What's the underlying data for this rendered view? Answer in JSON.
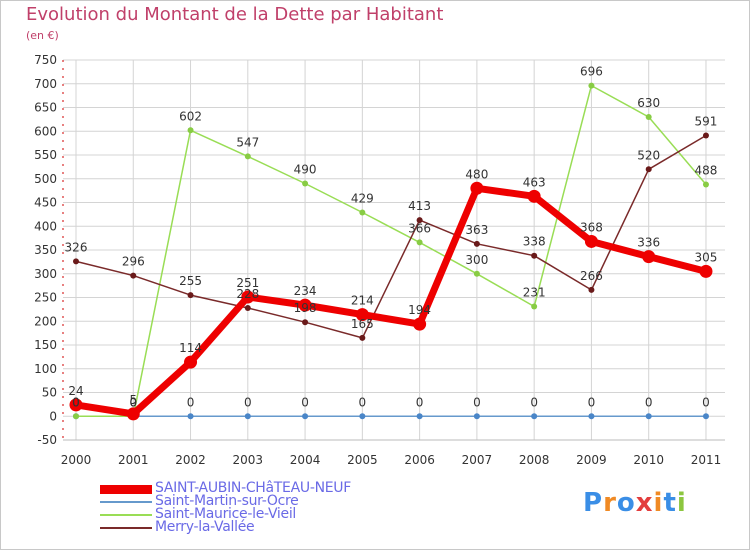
{
  "title": "Evolution du Montant de la Dette par Habitant",
  "subtitle": "(en €)",
  "logo": {
    "text": "Proxiti",
    "letter_colors": [
      "#3a8ee6",
      "#f08a24",
      "#3a8ee6",
      "#e33d3d",
      "#f08a24",
      "#3a8ee6",
      "#8cc63f"
    ]
  },
  "chart_data": {
    "type": "line",
    "x": [
      2000,
      2001,
      2002,
      2003,
      2004,
      2005,
      2006,
      2007,
      2008,
      2009,
      2010,
      2011
    ],
    "x_tick_labels": [
      "2000",
      "2001",
      "2002",
      "2003",
      "2004",
      "2005",
      "2006",
      "2007",
      "2008",
      "2009",
      "2010",
      "2011"
    ],
    "ylim": [
      -50,
      750
    ],
    "y_ticks": [
      -50,
      0,
      50,
      100,
      150,
      200,
      250,
      300,
      350,
      400,
      450,
      500,
      550,
      600,
      650,
      700,
      750
    ],
    "grid": true,
    "series": [
      {
        "name": "Saint-Martin-sur-Ocre",
        "color": "#6699cc",
        "values": [
          0,
          0,
          0,
          0,
          0,
          0,
          0,
          0,
          0,
          0,
          0,
          0
        ],
        "labels": [
          "0",
          "0",
          "0",
          "0",
          "0",
          "0",
          "0",
          "0",
          "0",
          "0",
          "0",
          "0"
        ]
      },
      {
        "name": "Saint-Maurice-le-Vieil",
        "color": "#99dd55",
        "values": [
          0,
          0,
          602,
          547,
          490,
          429,
          366,
          300,
          231,
          696,
          630,
          488
        ],
        "labels": [
          "0",
          "0",
          "602",
          "547",
          "490",
          "429",
          "366",
          "300",
          "231",
          "696",
          "630",
          "488"
        ]
      },
      {
        "name": "Merry-la-Vallée",
        "color": "#7a2a2a",
        "values": [
          326,
          296,
          255,
          228,
          198,
          165,
          413,
          363,
          338,
          266,
          520,
          591
        ],
        "labels": [
          "326",
          "296",
          "255",
          "228",
          "198",
          "165",
          "413",
          "363",
          "338",
          "266",
          "520",
          "591"
        ]
      },
      {
        "name": "SAINT-AUBIN-CHâTEAU-NEUF",
        "color": "#ee0000",
        "values": [
          24,
          5,
          114,
          251,
          234,
          214,
          194,
          480,
          463,
          368,
          336,
          305
        ],
        "labels": [
          "24",
          "5",
          "114",
          "251",
          "234",
          "214",
          "194",
          "480",
          "463",
          "368",
          "336",
          "305"
        ]
      }
    ]
  },
  "legend": [
    {
      "name": "SAINT-AUBIN-CHâTEAU-NEUF",
      "color": "#ee0000"
    },
    {
      "name": "Saint-Martin-sur-Ocre",
      "color": "#6699cc"
    },
    {
      "name": "Saint-Maurice-le-Vieil",
      "color": "#99dd55"
    },
    {
      "name": "Merry-la-Vallée",
      "color": "#7a2a2a"
    }
  ]
}
